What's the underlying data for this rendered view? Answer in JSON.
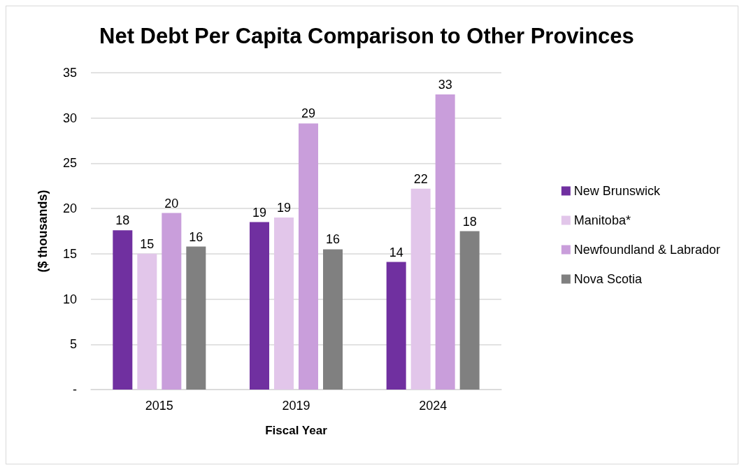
{
  "chart_data": {
    "type": "bar",
    "title": "Net Debt Per Capita Comparison to Other Provinces",
    "xlabel": "Fiscal Year",
    "ylabel": "($ thousands)",
    "categories": [
      "2015",
      "2019",
      "2024"
    ],
    "series": [
      {
        "name": "New Brunswick",
        "color": "#7030a0",
        "values": [
          17.6,
          18.5,
          14.1
        ],
        "value_labels": [
          "18",
          "19",
          "14"
        ]
      },
      {
        "name": "Manitoba*",
        "color": "#e2c6ea",
        "values": [
          15.0,
          19.0,
          22.2
        ],
        "value_labels": [
          "15",
          "19",
          "22"
        ]
      },
      {
        "name": "Newfoundland & Labrador",
        "color": "#c99edb",
        "values": [
          19.5,
          29.4,
          32.6
        ],
        "value_labels": [
          "20",
          "29",
          "33"
        ]
      },
      {
        "name": "Nova Scotia",
        "color": "#808080",
        "values": [
          15.8,
          15.5,
          17.5
        ],
        "value_labels": [
          "16",
          "16",
          "18"
        ]
      }
    ],
    "ylim": [
      0,
      35
    ],
    "yticks": [
      {
        "value": 0,
        "label": "-"
      },
      5,
      10,
      15,
      20,
      25,
      30,
      35
    ],
    "grid": "y",
    "legend": "right"
  }
}
